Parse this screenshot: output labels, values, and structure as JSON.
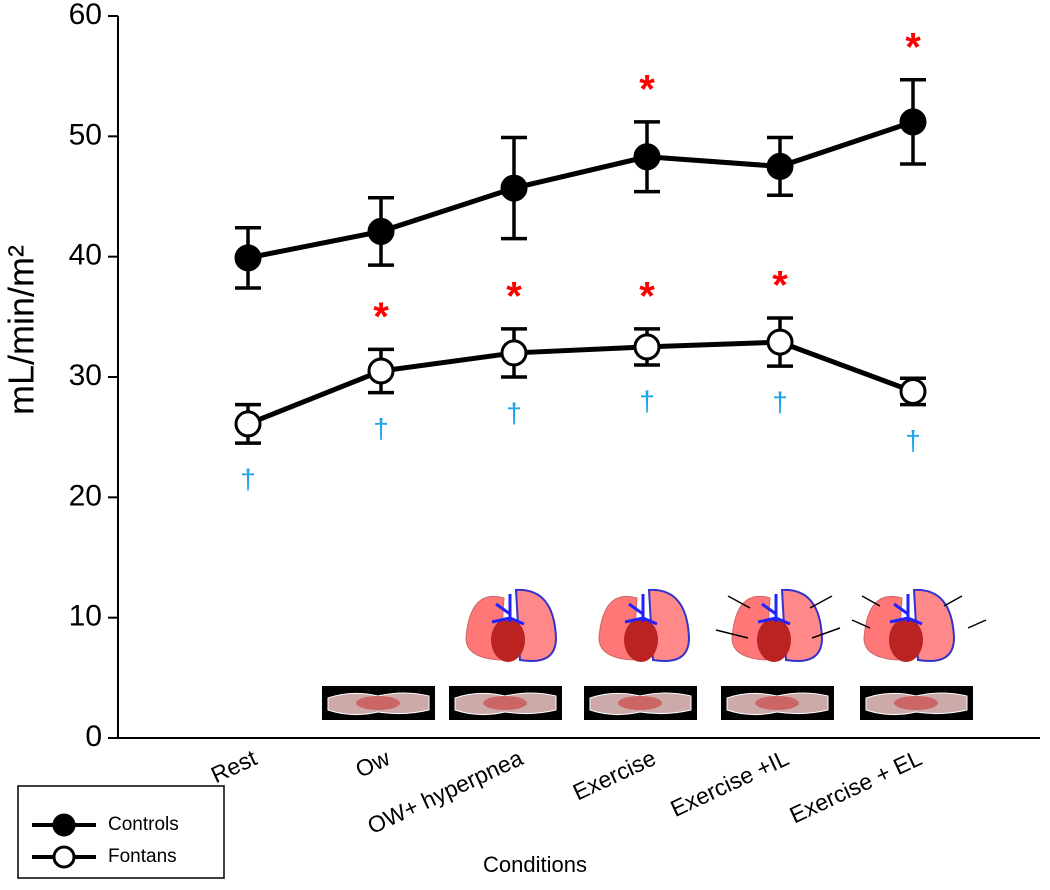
{
  "chart_data": {
    "type": "line",
    "y_label": "mL/min/m²",
    "x_label": "Conditions",
    "categories": [
      "Rest",
      "Ow",
      "OW+ hyperpnea",
      "Exercise",
      "Exercise +IL",
      "Exercise + EL"
    ],
    "ylim": [
      0,
      60
    ],
    "yticks": [
      0,
      10,
      20,
      30,
      40,
      50,
      60
    ],
    "series": [
      {
        "name": "Controls",
        "color": "#000000",
        "marker": "filled",
        "values": [
          39.9,
          42.1,
          45.7,
          48.3,
          47.5,
          51.2
        ],
        "errors": [
          2.5,
          2.8,
          4.2,
          2.9,
          2.4,
          3.5
        ],
        "annotations_above": [
          null,
          null,
          null,
          "*",
          null,
          "*"
        ]
      },
      {
        "name": "Fontans",
        "color": "#000000",
        "marker": "open",
        "values": [
          26.1,
          30.5,
          32.0,
          32.5,
          32.9,
          28.8
        ],
        "errors": [
          1.6,
          1.8,
          2.0,
          1.5,
          2.0,
          1.1
        ],
        "annotations_above": [
          null,
          "*",
          "*",
          "*",
          "*",
          null
        ],
        "annotations_below": [
          "†",
          "†",
          "†",
          "†",
          "†",
          "†"
        ]
      }
    ],
    "annotation_colors": {
      "above": "#ff0000",
      "below": "#1aa3e8"
    },
    "legend": "bottom-left"
  }
}
